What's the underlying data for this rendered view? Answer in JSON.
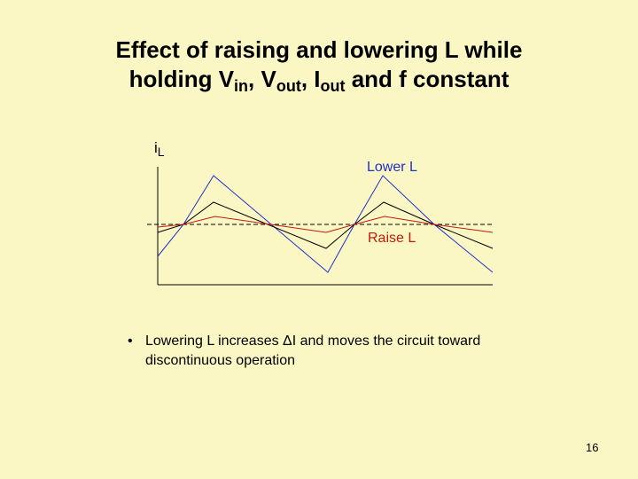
{
  "slide": {
    "title_line1": "Effect of raising and lowering L while",
    "title_line2": {
      "p1": "holding V",
      "in": "in",
      "p2": ", V",
      "out": "out",
      "p3": ", I",
      "out2": "out",
      "p4": " and f constant"
    },
    "y_axis_label": {
      "base": "i",
      "sub": "L"
    },
    "label_lower": "Lower L",
    "label_raise": "Raise L",
    "bullet_symbol": "•",
    "bullet_text": "Lowering L increases ΔI and moves the circuit toward discontinuous operation",
    "page_number": "16"
  },
  "colors": {
    "background": "#fbf7c4",
    "lower_L": "#1f2fc8",
    "nominal": "#000000",
    "raise_L": "#c01a10",
    "average": "#000000"
  },
  "chart_data": {
    "type": "line",
    "title": "",
    "ylabel": "iL",
    "grid": false,
    "series": [
      {
        "name": "Lower L",
        "color": "#1f2fc8",
        "x": [
          0,
          0.15,
          0.6,
          1.15,
          1.6,
          2.1
        ],
        "y": [
          -0.9,
          0.35,
          1.25,
          -1.1,
          1.25,
          -1.1
        ]
      },
      {
        "name": "",
        "color": "#000000",
        "x": [
          0,
          0.15,
          0.6,
          1.15,
          1.6,
          2.1
        ],
        "y": [
          -0.4,
          0.15,
          0.8,
          -0.65,
          0.8,
          -0.65
        ]
      },
      {
        "name": "Raise L",
        "color": "#c01a10",
        "x": [
          0,
          0.6,
          1.15,
          1.6,
          2.1
        ],
        "y": [
          0,
          0.22,
          -0.18,
          0.22,
          -0.18
        ]
      }
    ],
    "average_line": 0
  }
}
